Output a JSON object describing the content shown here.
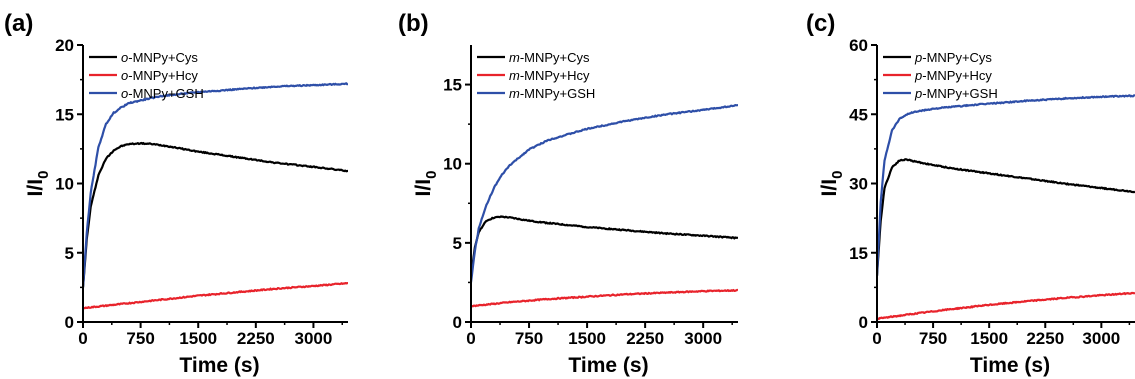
{
  "chart_data": [
    {
      "type": "line",
      "panel_label": "(a)",
      "xlabel": "Time (s)",
      "ylabel_main": "I/I",
      "ylabel_sub": "0",
      "xlim": [
        0,
        3450
      ],
      "ylim": [
        0,
        20
      ],
      "xticks": [
        0,
        750,
        1500,
        2250,
        3000
      ],
      "yticks": [
        0,
        5,
        10,
        15,
        20
      ],
      "legend_position": "top-left",
      "grid": false,
      "series": [
        {
          "name": "o-MNPy+Cys",
          "prefix": "o",
          "suffix": "-MNPy+Cys",
          "color": "#000000",
          "points": [
            [
              0,
              2.5
            ],
            [
              50,
              6
            ],
            [
              100,
              8.3
            ],
            [
              200,
              10.6
            ],
            [
              300,
              11.8
            ],
            [
              400,
              12.4
            ],
            [
              500,
              12.7
            ],
            [
              600,
              12.85
            ],
            [
              750,
              12.9
            ],
            [
              900,
              12.85
            ],
            [
              1100,
              12.7
            ],
            [
              1500,
              12.3
            ],
            [
              2000,
              11.9
            ],
            [
              2500,
              11.5
            ],
            [
              3000,
              11.2
            ],
            [
              3450,
              10.9
            ]
          ]
        },
        {
          "name": "o-MNPy+Hcy",
          "prefix": "o",
          "suffix": "-MNPy+Hcy",
          "color": "#e8232b",
          "points": [
            [
              0,
              1.0
            ],
            [
              500,
              1.3
            ],
            [
              1000,
              1.6
            ],
            [
              1500,
              1.9
            ],
            [
              2000,
              2.15
            ],
            [
              2500,
              2.4
            ],
            [
              3000,
              2.6
            ],
            [
              3450,
              2.8
            ]
          ]
        },
        {
          "name": "o-MNPy+GSH",
          "prefix": "o",
          "suffix": "-MNPy+GSH",
          "color": "#2e4fa8",
          "points": [
            [
              0,
              2.5
            ],
            [
              50,
              6.5
            ],
            [
              100,
              9.3
            ],
            [
              200,
              12.6
            ],
            [
              300,
              14.3
            ],
            [
              400,
              15.1
            ],
            [
              500,
              15.5
            ],
            [
              600,
              15.8
            ],
            [
              750,
              16.0
            ],
            [
              1000,
              16.3
            ],
            [
              1500,
              16.6
            ],
            [
              2000,
              16.8
            ],
            [
              2500,
              17.0
            ],
            [
              3000,
              17.1
            ],
            [
              3450,
              17.2
            ]
          ]
        }
      ]
    },
    {
      "type": "line",
      "panel_label": "(b)",
      "xlabel": "Time (s)",
      "ylabel_main": "I/I",
      "ylabel_sub": "0",
      "xlim": [
        0,
        3450
      ],
      "ylim": [
        0,
        17.5
      ],
      "xticks": [
        0,
        750,
        1500,
        2250,
        3000
      ],
      "yticks": [
        0,
        5,
        10,
        15
      ],
      "legend_position": "top-left",
      "grid": false,
      "series": [
        {
          "name": "m-MNPy+Cys",
          "prefix": "m",
          "suffix": "-MNPy+Cys",
          "color": "#000000",
          "points": [
            [
              0,
              2.8
            ],
            [
              50,
              4.7
            ],
            [
              100,
              5.7
            ],
            [
              200,
              6.4
            ],
            [
              300,
              6.6
            ],
            [
              400,
              6.65
            ],
            [
              500,
              6.6
            ],
            [
              750,
              6.4
            ],
            [
              1000,
              6.25
            ],
            [
              1500,
              6.0
            ],
            [
              2000,
              5.8
            ],
            [
              2500,
              5.6
            ],
            [
              3000,
              5.45
            ],
            [
              3450,
              5.3
            ]
          ]
        },
        {
          "name": "m-MNPy+Hcy",
          "prefix": "m",
          "suffix": "-MNPy+Hcy",
          "color": "#e8232b",
          "points": [
            [
              0,
              1.0
            ],
            [
              500,
              1.25
            ],
            [
              1000,
              1.45
            ],
            [
              1500,
              1.6
            ],
            [
              2000,
              1.75
            ],
            [
              2500,
              1.85
            ],
            [
              3000,
              1.95
            ],
            [
              3450,
              2.0
            ]
          ]
        },
        {
          "name": "m-MNPy+GSH",
          "prefix": "m",
          "suffix": "-MNPy+GSH",
          "color": "#2e4fa8",
          "points": [
            [
              0,
              2.5
            ],
            [
              50,
              4.5
            ],
            [
              100,
              5.9
            ],
            [
              200,
              7.4
            ],
            [
              300,
              8.5
            ],
            [
              400,
              9.3
            ],
            [
              500,
              9.9
            ],
            [
              750,
              10.9
            ],
            [
              1000,
              11.5
            ],
            [
              1500,
              12.2
            ],
            [
              2000,
              12.7
            ],
            [
              2500,
              13.1
            ],
            [
              3000,
              13.4
            ],
            [
              3450,
              13.7
            ]
          ]
        }
      ]
    },
    {
      "type": "line",
      "panel_label": "(c)",
      "xlabel": "Time (s)",
      "ylabel_main": "I/I",
      "ylabel_sub": "0",
      "xlim": [
        0,
        3450
      ],
      "ylim": [
        0,
        60
      ],
      "xticks": [
        0,
        750,
        1500,
        2250,
        3000
      ],
      "yticks": [
        0,
        15,
        30,
        45,
        60
      ],
      "legend_position": "top-left",
      "grid": false,
      "series": [
        {
          "name": "p-MNPy+Cys",
          "prefix": "p",
          "suffix": "-MNPy+Cys",
          "color": "#000000",
          "points": [
            [
              0,
              10
            ],
            [
              50,
              22
            ],
            [
              100,
              29
            ],
            [
              200,
              33.5
            ],
            [
              300,
              35
            ],
            [
              400,
              35.2
            ],
            [
              500,
              34.8
            ],
            [
              750,
              34
            ],
            [
              1000,
              33.3
            ],
            [
              1500,
              32.2
            ],
            [
              2000,
              31.1
            ],
            [
              2500,
              30.0
            ],
            [
              3000,
              29.0
            ],
            [
              3450,
              28.2
            ]
          ]
        },
        {
          "name": "p-MNPy+Hcy",
          "prefix": "p",
          "suffix": "-MNPy+Hcy",
          "color": "#e8232b",
          "points": [
            [
              0,
              0.7
            ],
            [
              500,
              1.8
            ],
            [
              1000,
              2.8
            ],
            [
              1500,
              3.7
            ],
            [
              2000,
              4.5
            ],
            [
              2500,
              5.2
            ],
            [
              3000,
              5.8
            ],
            [
              3450,
              6.3
            ]
          ]
        },
        {
          "name": "p-MNPy+GSH",
          "prefix": "p",
          "suffix": "-MNPy+GSH",
          "color": "#2e4fa8",
          "points": [
            [
              0,
              10
            ],
            [
              50,
              26
            ],
            [
              100,
              35
            ],
            [
              200,
              41.5
            ],
            [
              300,
              44
            ],
            [
              400,
              45
            ],
            [
              500,
              45.5
            ],
            [
              750,
              46.2
            ],
            [
              1000,
              46.6
            ],
            [
              1500,
              47.3
            ],
            [
              2000,
              47.9
            ],
            [
              2500,
              48.4
            ],
            [
              3000,
              48.8
            ],
            [
              3450,
              49.0
            ]
          ]
        }
      ]
    }
  ]
}
